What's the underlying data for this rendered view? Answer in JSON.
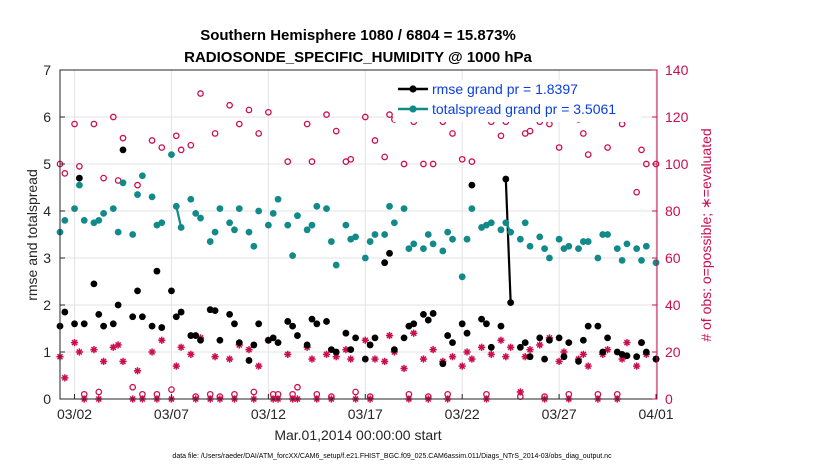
{
  "chart_data": {
    "type": "line",
    "title": "Southern Hemisphere 1080 / 6804 = 15.873%",
    "subtitle": "RADIOSONDE_SPECIFIC_HUMIDITY @ 1000 hPa",
    "xlabel": "Mar.01,2014 00:00:00 start",
    "ylabel": "rmse and totalspread",
    "ylabel_right": "# of obs: o=possible; ∗=evaluated",
    "xlim": [
      0.25,
      31.05
    ],
    "ylim": [
      0,
      7
    ],
    "ylim_right": [
      0,
      140
    ],
    "x_ticks": [
      1,
      6,
      11,
      16,
      21,
      26,
      31
    ],
    "x_tick_labels": [
      "03/02",
      "03/07",
      "03/12",
      "03/17",
      "03/22",
      "03/27",
      "04/01"
    ],
    "y_ticks": [
      0,
      1,
      2,
      3,
      4,
      5,
      6,
      7
    ],
    "y_ticks_right": [
      0,
      20,
      40,
      60,
      80,
      100,
      120,
      140
    ],
    "grid": true,
    "legend_position": "top-right",
    "colors": {
      "rmse": "#000000",
      "spread": "#138a8a",
      "obs": "#cc0d4d",
      "legend_text": "#0a3ee0"
    },
    "series": [
      {
        "name": "rmse grand pr = 1.8397",
        "color": "#000000",
        "x": [
          0.25,
          0.5,
          1,
          1.25,
          1.5,
          2,
          2.25,
          2.5,
          3,
          3.25,
          3.5,
          4,
          4.25,
          4.5,
          5,
          5.25,
          5.5,
          6,
          6.25,
          6.5,
          7,
          7.25,
          7.5,
          8,
          8.25,
          8.5,
          9,
          9.25,
          9.5,
          10,
          10.25,
          10.5,
          11,
          11.25,
          11.5,
          12,
          12.25,
          12.5,
          13,
          13.25,
          13.5,
          14,
          14.25,
          14.5,
          15,
          15.25,
          15.5,
          16,
          16.25,
          16.5,
          17,
          17.25,
          17.5,
          18,
          18.25,
          18.5,
          19,
          19.25,
          19.5,
          20,
          20.25,
          20.5,
          21,
          21.25,
          21.5,
          22,
          22.25,
          22.5,
          23,
          23.25,
          23.5,
          24,
          24.25,
          24.5,
          25,
          25.25,
          25.5,
          26,
          26.25,
          26.5,
          27,
          27.25,
          27.5,
          28,
          28.25,
          28.5,
          29,
          29.25,
          29.5,
          30,
          30.25,
          30.5,
          31
        ],
        "y": [
          1.55,
          1.85,
          1.6,
          4.7,
          1.6,
          2.45,
          1.8,
          1.55,
          1.6,
          2.0,
          5.3,
          1.75,
          2.3,
          1.75,
          1.55,
          2.72,
          1.52,
          2.3,
          1.75,
          1.85,
          1.35,
          1.35,
          1.25,
          1.9,
          1.88,
          1.25,
          1.8,
          1.6,
          1.2,
          0.82,
          1.15,
          1.6,
          1.25,
          1.3,
          1.2,
          1.65,
          1.55,
          1.35,
          1.15,
          1.7,
          1.6,
          1.65,
          1.05,
          1.0,
          1.4,
          1.05,
          1.3,
          0.85,
          1.15,
          1.3,
          2.9,
          3.1,
          1.05,
          1.3,
          1.55,
          1.6,
          1.8,
          1.68,
          1.82,
          0.75,
          1.35,
          1.2,
          1.6,
          1.4,
          4.55,
          1.7,
          1.6,
          1.1,
          1.55,
          4.68,
          2.05,
          1.1,
          1.2,
          0.9,
          1.3,
          0.85,
          1.25,
          1.3,
          0.9,
          1.2,
          0.8,
          1.25,
          1.55,
          1.55,
          1.0,
          1.3,
          1.0,
          0.95,
          0.92,
          0.9,
          1.2,
          1.0,
          0.85
        ],
        "segments": [
          [
            4.75,
            5.25
          ],
          [
            5.25,
            5.75
          ],
          [
            5.75,
            6.25
          ],
          [
            6.25,
            6.5
          ],
          [
            23.25,
            23.5
          ],
          [
            23.5,
            23.75
          ]
        ]
      },
      {
        "name": "totalspread grand pr = 3.5061",
        "color": "#138a8a",
        "x": [
          0.25,
          0.5,
          1,
          1.25,
          1.5,
          2,
          2.25,
          2.5,
          3,
          3.25,
          3.5,
          4,
          4.25,
          4.5,
          5,
          5.25,
          5.5,
          6,
          6.25,
          6.5,
          7,
          7.25,
          7.5,
          8,
          8.25,
          8.5,
          9,
          9.25,
          9.5,
          10,
          10.25,
          10.5,
          11,
          11.25,
          11.5,
          12,
          12.25,
          12.5,
          13,
          13.25,
          13.5,
          14,
          14.25,
          14.5,
          15,
          15.25,
          15.5,
          16,
          16.25,
          16.5,
          17,
          17.25,
          17.5,
          18,
          18.25,
          18.5,
          19,
          19.25,
          19.5,
          20,
          20.25,
          20.5,
          21,
          21.25,
          21.5,
          22,
          22.25,
          22.5,
          23,
          23.25,
          23.5,
          24,
          24.25,
          24.5,
          25,
          25.25,
          25.5,
          26,
          26.25,
          26.5,
          27,
          27.25,
          27.5,
          28,
          28.25,
          28.5,
          29,
          29.25,
          29.5,
          30,
          30.25,
          30.5,
          31
        ],
        "y": [
          3.55,
          3.8,
          4.05,
          4.55,
          3.8,
          3.75,
          3.8,
          3.95,
          4.05,
          3.55,
          4.6,
          3.5,
          4.35,
          4.75,
          4.3,
          3.7,
          3.75,
          5.2,
          4.1,
          3.65,
          4.25,
          3.95,
          3.85,
          3.35,
          3.55,
          4.05,
          3.75,
          3.6,
          4.05,
          3.55,
          3.25,
          4.0,
          3.7,
          3.95,
          4.25,
          3.7,
          3.05,
          3.9,
          3.6,
          3.7,
          4.1,
          4.05,
          3.35,
          2.85,
          3.7,
          3.4,
          3.45,
          3.0,
          3.35,
          3.5,
          3.5,
          4.1,
          3.75,
          4.05,
          3.2,
          3.3,
          3.2,
          3.5,
          3.3,
          3.15,
          3.55,
          3.4,
          2.6,
          3.4,
          4.05,
          3.65,
          3.7,
          3.75,
          3.6,
          3.75,
          3.55,
          3.4,
          3.75,
          3.25,
          3.45,
          3.2,
          3.0,
          3.4,
          3.2,
          3.25,
          3.2,
          3.35,
          3.35,
          3.0,
          3.5,
          3.5,
          3.2,
          2.95,
          3.3,
          3.2,
          2.95,
          3.25,
          2.9
        ],
        "segments": [
          [
            4.75,
            5.25
          ],
          [
            5.25,
            5.75
          ],
          [
            5.75,
            6.25
          ],
          [
            6.25,
            6.5
          ],
          [
            23.25,
            23.5
          ],
          [
            23.5,
            23.75
          ]
        ]
      }
    ],
    "obs_possible": {
      "name": "possible obs",
      "axis": "right",
      "marker": "o",
      "x": [
        0.25,
        0.5,
        1,
        1.25,
        1.5,
        2,
        2.25,
        2.5,
        3,
        3.25,
        3.5,
        4,
        4.25,
        4.5,
        5,
        5.25,
        5.5,
        6,
        6.25,
        6.5,
        7,
        7.25,
        7.5,
        8,
        8.25,
        8.5,
        9,
        9.25,
        9.5,
        10,
        10.25,
        10.5,
        11,
        11.25,
        11.5,
        12,
        12.25,
        12.5,
        13,
        13.25,
        13.5,
        14,
        14.25,
        14.5,
        15,
        15.25,
        15.5,
        16,
        16.25,
        16.5,
        17,
        17.25,
        17.5,
        18,
        18.25,
        18.5,
        19,
        19.25,
        19.5,
        20,
        20.25,
        20.5,
        21,
        21.25,
        21.5,
        22,
        22.25,
        22.5,
        23,
        23.25,
        23.5,
        24,
        24.25,
        24.5,
        25,
        25.25,
        25.5,
        26,
        26.25,
        26.5,
        27,
        27.25,
        27.5,
        28,
        28.25,
        28.5,
        29,
        29.25,
        29.5,
        30,
        30.25,
        30.5,
        31
      ],
      "y": [
        100,
        96,
        117,
        99,
        2,
        117,
        3,
        94,
        120,
        93,
        111,
        5,
        91,
        2,
        110,
        2,
        107,
        4,
        112,
        106,
        108,
        1,
        130,
        2,
        113,
        1,
        125,
        2,
        117,
        123,
        3,
        113,
        122,
        2,
        2,
        101,
        2,
        5,
        117,
        101,
        2,
        121,
        1,
        114,
        101,
        102,
        3,
        120,
        1,
        110,
        103,
        121,
        119,
        100,
        2,
        118,
        100,
        1,
        100,
        118,
        2,
        113,
        102,
        127,
        101,
        124,
        2,
        118,
        112,
        118,
        122,
        1,
        113,
        114,
        118,
        1,
        117,
        107,
        120,
        2,
        119,
        113,
        104,
        2,
        122,
        107,
        2,
        117,
        120,
        88,
        106,
        100,
        100
      ]
    },
    "obs_evaluated": {
      "name": "evaluated obs",
      "axis": "right",
      "marker": "*",
      "x": [
        0.25,
        0.5,
        1,
        1.25,
        1.5,
        2,
        2.25,
        2.5,
        3,
        3.25,
        3.5,
        4,
        4.25,
        4.5,
        5,
        5.25,
        5.5,
        6,
        6.25,
        6.5,
        7,
        7.25,
        7.5,
        8,
        8.25,
        8.5,
        9,
        9.25,
        9.5,
        10,
        10.25,
        10.5,
        11,
        11.25,
        11.5,
        12,
        12.25,
        12.5,
        13,
        13.25,
        13.5,
        14,
        14.25,
        14.5,
        15,
        15.25,
        15.5,
        16,
        16.25,
        16.5,
        17,
        17.25,
        17.5,
        18,
        18.25,
        18.5,
        19,
        19.25,
        19.5,
        20,
        20.25,
        20.5,
        21,
        21.25,
        21.5,
        22,
        22.25,
        22.5,
        23,
        23.25,
        23.5,
        24,
        24.25,
        24.5,
        25,
        25.25,
        25.5,
        26,
        26.25,
        26.5,
        27,
        27.25,
        27.5,
        28,
        28.25,
        28.5,
        29,
        29.25,
        29.5,
        30,
        30.25,
        30.5,
        31
      ],
      "y": [
        18,
        9,
        24,
        20,
        0,
        21,
        0,
        16,
        22,
        23,
        16,
        0,
        12,
        0,
        20,
        0,
        25,
        0,
        14,
        22,
        19,
        0,
        26,
        0,
        18,
        0,
        17,
        0,
        23,
        21,
        0,
        14,
        25,
        0,
        0,
        19,
        0,
        0,
        22,
        17,
        0,
        19,
        0,
        18,
        21,
        17,
        0,
        25,
        0,
        17,
        16,
        27,
        20,
        13,
        0,
        28,
        17,
        0,
        21,
        16,
        0,
        18,
        14,
        20,
        17,
        22,
        0,
        19,
        25,
        18,
        22,
        3,
        18,
        21,
        23,
        0,
        26,
        16,
        20,
        0,
        17,
        19,
        14,
        0,
        19,
        21,
        0,
        17,
        24,
        14,
        24,
        19,
        17
      ]
    }
  },
  "footer": "data file: /Users/raeder/DAI/ATM_forcXX/CAM6_setup/f.e21.FHIST_BGC.f09_025.CAM6assim.011/Diags_NTrS_2014-03/obs_diag_output.nc"
}
